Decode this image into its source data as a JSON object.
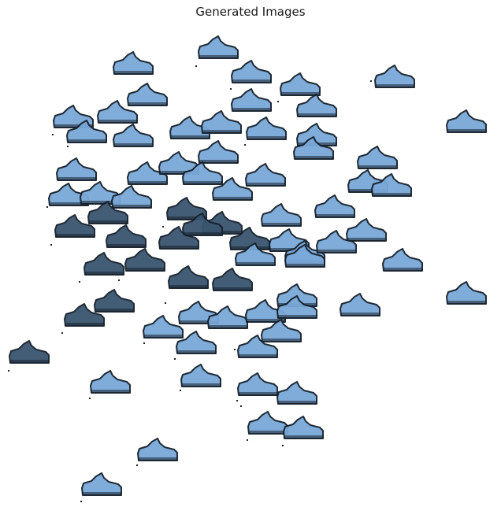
{
  "figure": {
    "title": "Generated Images"
  },
  "sample_glyph": "sneaker-icon",
  "palette": {
    "light_fill": "#7aa8d8",
    "dark_fill": "#3a556f",
    "outline": "#15202c",
    "dot": "#222222"
  }
}
